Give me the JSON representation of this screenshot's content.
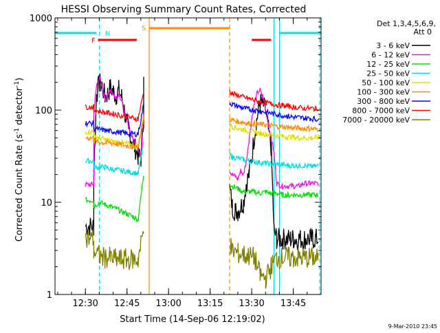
{
  "chart_data": {
    "type": "line",
    "title": "HESSI Observing Summary Count Rates, Corrected",
    "xlabel": "Start Time (14-Sep-06 12:19:02)",
    "ylabel_main": "Corrected Count Rate (s",
    "ylabel_sup1": "-1",
    "ylabel_mid": " detector",
    "ylabel_sup2": "-1",
    "ylabel_end": ")",
    "ylabel_full": "Corrected Count Rate (s-1 detector-1)",
    "yscale": "log",
    "ylim": [
      1,
      1000
    ],
    "xlim_minutes": [
      0,
      96
    ],
    "x_ticks": [
      {
        "label": "12:30",
        "min": 10.97
      },
      {
        "label": "12:45",
        "min": 25.97
      },
      {
        "label": "13:00",
        "min": 40.97
      },
      {
        "label": "13:15",
        "min": 55.97
      },
      {
        "label": "13:30",
        "min": 70.97
      },
      {
        "label": "13:45",
        "min": 85.97
      }
    ],
    "y_ticks": [
      {
        "label": "1",
        "value": 1
      },
      {
        "label": "10",
        "value": 10
      },
      {
        "label": "100",
        "value": 100
      },
      {
        "label": "1000",
        "value": 1000
      }
    ],
    "legend_header_1": "Det 1,3,4,5,6,9,",
    "legend_header_2": "Att 0",
    "footer_date": "9-Mar-2010 23:45",
    "flags": [
      {
        "code": "N",
        "color": "#00e0e0"
      },
      {
        "code": "S",
        "color": "#ff8800"
      },
      {
        "code": "F",
        "color": "#ff0000"
      }
    ],
    "series": [
      {
        "name": "3 - 6 keV",
        "color": "#000000",
        "x": [
          11,
          14,
          14,
          15,
          16,
          17,
          18,
          19,
          20,
          21,
          22,
          23,
          24,
          25,
          26,
          27,
          28,
          29,
          30,
          31,
          32,
          32,
          63,
          64,
          65,
          66,
          67,
          68,
          69,
          70,
          71,
          72,
          73,
          74,
          75,
          76,
          77,
          78,
          79,
          80,
          81,
          82,
          83,
          84,
          85,
          86,
          87,
          88,
          89,
          90,
          91,
          92,
          93,
          94,
          95
        ],
        "y": [
          5.5,
          5.5,
          20,
          150,
          195,
          185,
          140,
          150,
          175,
          160,
          145,
          165,
          140,
          100,
          70,
          55,
          45,
          38,
          32,
          30,
          85,
          205,
          14,
          9,
          8,
          8,
          9,
          10,
          16,
          20,
          30,
          55,
          85,
          120,
          118,
          95,
          60,
          40,
          5,
          4,
          4,
          4,
          4,
          4,
          4,
          4,
          4,
          4,
          4,
          4,
          4,
          4,
          4,
          4,
          4
        ]
      },
      {
        "name": "6 - 12 keV",
        "color": "#ff00ff",
        "x": [
          11,
          14,
          14,
          15,
          16,
          17,
          18,
          19,
          20,
          21,
          22,
          23,
          24,
          25,
          26,
          27,
          28,
          29,
          30,
          31,
          32,
          63,
          64,
          65,
          66,
          67,
          68,
          69,
          70,
          71,
          72,
          73,
          74,
          75,
          76,
          77,
          78,
          79,
          80,
          82,
          84,
          86,
          88,
          90,
          92,
          94,
          95
        ],
        "y": [
          15.5,
          15.5,
          95,
          185,
          230,
          175,
          135,
          140,
          170,
          150,
          135,
          150,
          130,
          95,
          75,
          60,
          50,
          45,
          38,
          30,
          95,
          22,
          20,
          19,
          18,
          22,
          20,
          28,
          48,
          80,
          120,
          155,
          165,
          140,
          100,
          70,
          50,
          35,
          16,
          15,
          15,
          15,
          15,
          16,
          16,
          16,
          16
        ]
      },
      {
        "name": "12 - 25 keV",
        "color": "#00dd00",
        "x": [
          11,
          14,
          14,
          16,
          18,
          20,
          22,
          24,
          26,
          28,
          30,
          32,
          63,
          64,
          66,
          68,
          70,
          72,
          74,
          76,
          78,
          80,
          82,
          84,
          86,
          88,
          90,
          92,
          94,
          95
        ],
        "y": [
          10.5,
          10.5,
          9,
          10,
          9.5,
          9,
          8.5,
          8,
          7.5,
          7,
          6.5,
          20,
          16,
          15,
          14,
          13,
          13,
          13,
          12.5,
          13,
          12.5,
          12.5,
          12,
          12,
          12,
          12,
          12,
          12,
          12,
          12
        ]
      },
      {
        "name": "25 - 50 keV",
        "color": "#00dddd",
        "x": [
          11,
          14,
          14,
          16,
          18,
          20,
          22,
          24,
          26,
          28,
          30,
          32,
          63,
          64,
          66,
          68,
          70,
          72,
          74,
          76,
          78,
          80,
          82,
          84,
          86,
          88,
          90,
          92,
          94,
          95
        ],
        "y": [
          28,
          28,
          24,
          24,
          24,
          23,
          22.5,
          22,
          21.5,
          21,
          20.5,
          45,
          33,
          31,
          30,
          29,
          28,
          27.5,
          27,
          26.5,
          26,
          26,
          25.5,
          25,
          25,
          25,
          25,
          24.5,
          24.5,
          25
        ]
      },
      {
        "name": "50 - 100 keV",
        "color": "#dddd00",
        "x": [
          11,
          14,
          14,
          16,
          18,
          20,
          22,
          24,
          26,
          28,
          30,
          32,
          63,
          64,
          66,
          68,
          70,
          72,
          74,
          76,
          78,
          80,
          82,
          84,
          86,
          88,
          90,
          92,
          94,
          95
        ],
        "y": [
          58,
          58,
          52,
          50,
          48,
          46,
          45,
          44,
          43,
          42,
          41,
          90,
          70,
          66,
          63,
          61,
          59,
          57,
          56,
          55,
          54,
          53,
          52,
          51,
          51,
          50,
          50,
          50,
          50,
          51
        ]
      },
      {
        "name": "100 - 300 keV",
        "color": "#ff8800",
        "x": [
          11,
          14,
          14,
          16,
          18,
          20,
          22,
          24,
          26,
          28,
          30,
          32,
          63,
          64,
          66,
          68,
          70,
          72,
          74,
          76,
          78,
          80,
          82,
          84,
          86,
          88,
          90,
          92,
          94,
          95
        ],
        "y": [
          50,
          50,
          46,
          45,
          44,
          44,
          43,
          42,
          41,
          40,
          40,
          82,
          80,
          78,
          75,
          74,
          72,
          71,
          70,
          69,
          68,
          67,
          66,
          65,
          64,
          64,
          63,
          63,
          62,
          62
        ]
      },
      {
        "name": "300 - 800 keV",
        "color": "#0000ff",
        "x": [
          11,
          14,
          14,
          16,
          18,
          20,
          22,
          24,
          26,
          28,
          30,
          32,
          63,
          64,
          66,
          68,
          70,
          72,
          74,
          76,
          78,
          80,
          82,
          84,
          86,
          88,
          90,
          92,
          94,
          95
        ],
        "y": [
          72,
          72,
          63,
          62,
          60,
          59,
          58,
          57,
          56,
          55,
          55,
          115,
          120,
          115,
          110,
          105,
          102,
          100,
          97,
          95,
          92,
          90,
          88,
          86,
          84,
          83,
          82,
          81,
          80,
          80
        ]
      },
      {
        "name": "800 - 7000 keV",
        "color": "#ff0000",
        "x": [
          11,
          14,
          14,
          16,
          18,
          20,
          22,
          24,
          26,
          28,
          30,
          32,
          63,
          64,
          66,
          68,
          70,
          72,
          74,
          76,
          78,
          80,
          82,
          84,
          86,
          88,
          90,
          92,
          94,
          95
        ],
        "y": [
          108,
          108,
          100,
          97,
          94,
          92,
          90,
          87,
          85,
          82,
          80,
          160,
          160,
          150,
          145,
          138,
          133,
          128,
          124,
          120,
          117,
          114,
          112,
          110,
          108,
          106,
          105,
          104,
          104,
          106
        ]
      },
      {
        "name": "7000 - 20000 keV",
        "color": "#808000",
        "x": [
          11,
          14,
          14,
          16,
          18,
          20,
          22,
          24,
          26,
          28,
          30,
          32,
          63,
          64,
          66,
          68,
          70,
          72,
          74,
          76,
          78,
          80,
          82,
          84,
          86,
          88,
          90,
          92,
          94,
          95
        ],
        "y": [
          4,
          4,
          3,
          2.6,
          2.5,
          2.5,
          2.4,
          2.4,
          2.4,
          2.4,
          2.4,
          5,
          3.5,
          3,
          2.8,
          2.7,
          2.6,
          2.5,
          1.6,
          1.5,
          2,
          2.5,
          2.5,
          2.5,
          2.5,
          2.5,
          2.5,
          2.5,
          2.5,
          2.5
        ]
      }
    ],
    "flag_bars": [
      {
        "label": "N",
        "color": "#00e0e0",
        "segments": [
          [
            0,
            15
          ],
          [
            81,
            96
          ]
        ]
      },
      {
        "label": "S",
        "color": "#ff8800",
        "segments": [
          [
            34,
            63
          ]
        ]
      },
      {
        "label": "F",
        "color": "#ff0000",
        "segments": [
          [
            15.5,
            29.5
          ],
          [
            71,
            78
          ]
        ]
      }
    ],
    "vertical_lines": [
      {
        "min": 16,
        "color": "#00e0e0",
        "style": "dashed"
      },
      {
        "min": 34,
        "color": "#ff8800",
        "style": "solid"
      },
      {
        "min": 63,
        "color": "#ff8800",
        "style": "dashed"
      },
      {
        "min": 79,
        "color": "#00e0e0",
        "style": "solid"
      },
      {
        "min": 81,
        "color": "#00e0e0",
        "style": "solid"
      },
      {
        "min": 95.5,
        "color": "#00e0e0",
        "style": "dashed"
      }
    ]
  }
}
